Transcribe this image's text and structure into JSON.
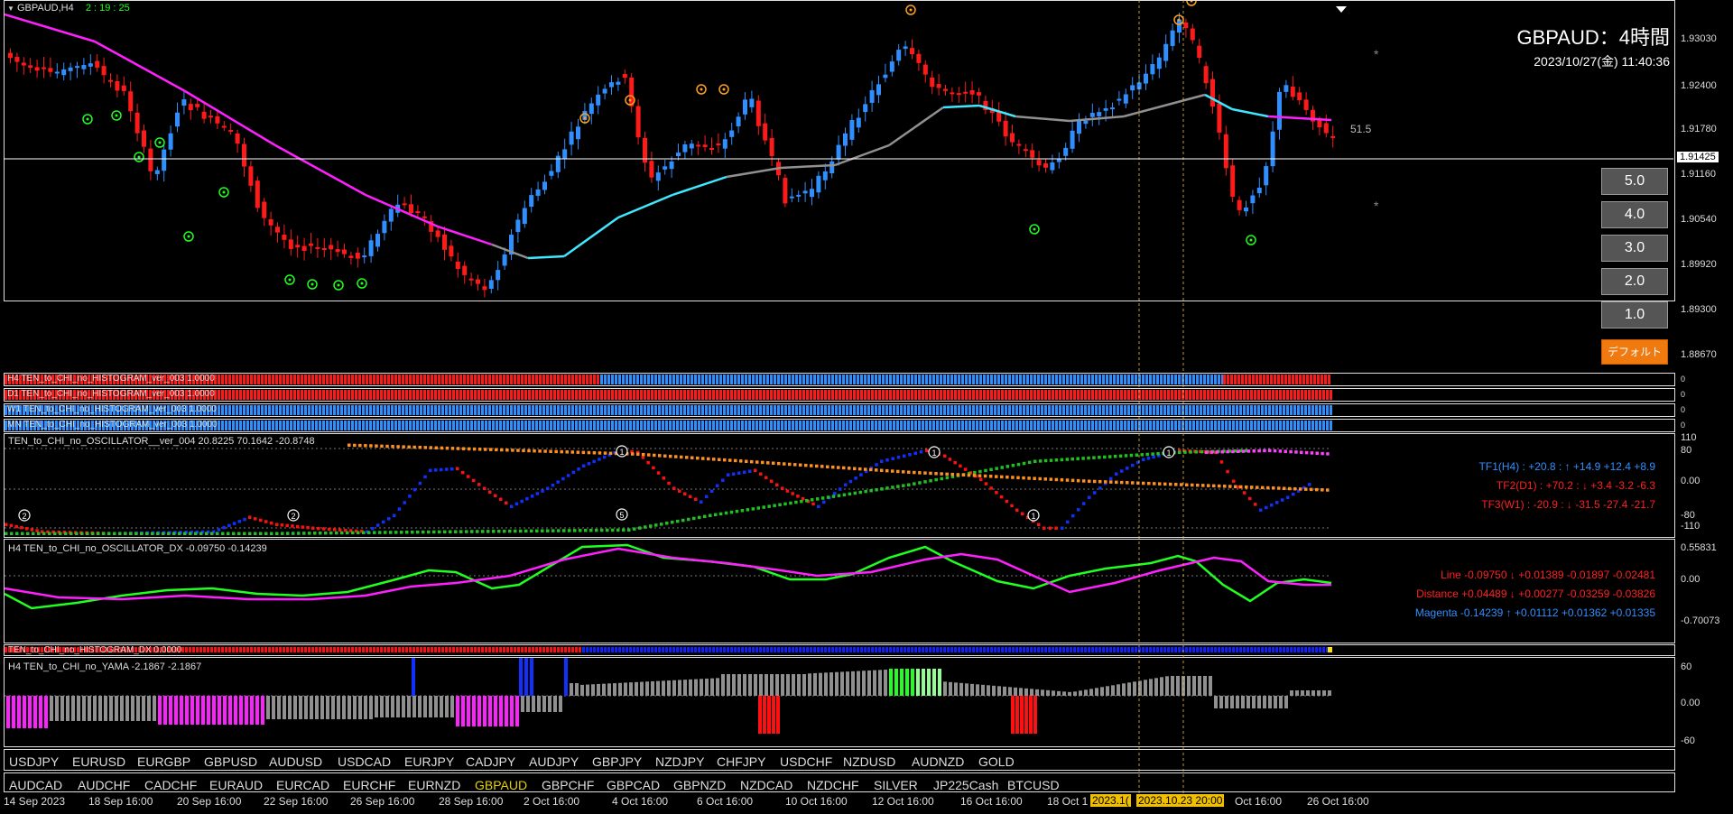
{
  "header": {
    "symbol_tf": "GBPAUD,H4",
    "countdown": "2 : 19 : 25",
    "title": "GBPAUD：4時間",
    "datetime": "2023/10/27(金) 11:40:36",
    "level_label": "51.5"
  },
  "price_axis": [
    "1.93030",
    "1.92400",
    "1.91780",
    "1.91160",
    "1.90540",
    "1.89920",
    "1.89300",
    "1.88670"
  ],
  "current_price": "1.91425",
  "tf_buttons": [
    "5.0",
    "4.0",
    "3.0",
    "2.0",
    "1.0"
  ],
  "default_button": "デフォルト",
  "histograms": [
    {
      "label": "H4 TEN_to_CHI_no_HISTOGRAM_ver_003 1.0000"
    },
    {
      "label": "D1 TEN_to_CHI_no_HISTOGRAM_ver_003 1.0000"
    },
    {
      "label": "W1 TEN_to_CHI_no_HISTOGRAM_ver_003 1.0000"
    },
    {
      "label": "MN TEN_to_CHI_no_HISTOGRAM_ver_003 1.0000"
    }
  ],
  "oscillator": {
    "label": "TEN_to_CHI_no_OSCILLATOR__ver_004 20.8225 70.1642 -20.8748",
    "axis": [
      "110",
      "80",
      "0.00",
      "-80",
      "-110"
    ],
    "tf1": "TF1(H4) : +20.8 : ↑ +14.9 +12.4 +8.9",
    "tf2": "TF2(D1) : +70.2 : ↓ +3.4 -3.2 -6.3",
    "tf3": "TF3(W1) : -20.9 : ↓ -31.5 -27.4 -21.7"
  },
  "oscillator_dx": {
    "label": "H4 TEN_to_CHI_no_OSCILLATOR_DX  -0.09750 -0.14239",
    "axis": [
      "0.55831",
      "0.00",
      "-0.70073"
    ],
    "line": "Line -0.09750 ↓ +0.01389 -0.01897 -0.02481",
    "distance": "Distance +0.04489 ↓ +0.00277 -0.03259 -0.03826",
    "magenta": "Magenta -0.14239 ↑ +0.01112 +0.01362 +0.01335"
  },
  "histogram_dx": {
    "label": "TEN_to_CHI_no_HISTOGRAM_DX 0.0000"
  },
  "yama": {
    "label": "H4  TEN_to_CHI_no_YAMA -2.1867 -2.1867",
    "axis": [
      "60",
      "0.00",
      "-60"
    ]
  },
  "symbols_row1": [
    "USDJPY",
    "EURUSD",
    "EURGBP",
    "GBPUSD",
    "AUDUSD",
    "USDCAD",
    "EURJPY",
    "CADJPY",
    "AUDJPY",
    "GBPJPY",
    "NZDJPY",
    "CHFJPY",
    "USDCHF",
    "NZDUSD",
    "AUDNZD",
    "GOLD"
  ],
  "symbols_row2": [
    "AUDCAD",
    "AUDCHF",
    "CADCHF",
    "EURAUD",
    "EURCAD",
    "EURCHF",
    "EURNZD",
    "GBPAUD",
    "GBPCHF",
    "GBPCAD",
    "GBPNZD",
    "NZDCAD",
    "NZDCHF",
    "SILVER",
    "JP225Cash",
    "BTCUSD"
  ],
  "active_symbol": "GBPAUD",
  "time_axis": [
    "14 Sep 2023",
    "18 Sep 16:00",
    "20 Sep 16:00",
    "22 Sep 16:00",
    "26 Sep 16:00",
    "28 Sep 16:00",
    "2 Oct 16:00",
    "4 Oct 16:00",
    "6 Oct 16:00",
    "10 Oct 16:00",
    "12 Oct 16:00",
    "16 Oct 16:00",
    "18 Oct 1",
    "Oct 16:00",
    "26 Oct 16:00"
  ],
  "time_highlights": [
    "2023.1(",
    "2023.10.23 20:00"
  ],
  "colors": {
    "bull": "#2f8fff",
    "bear": "#ff1a1a",
    "ma_down": "#ff20ff",
    "ma_up": "#40e8ff",
    "ma_flat": "#909090",
    "green": "#20ff20",
    "orange": "#ffa020"
  }
}
